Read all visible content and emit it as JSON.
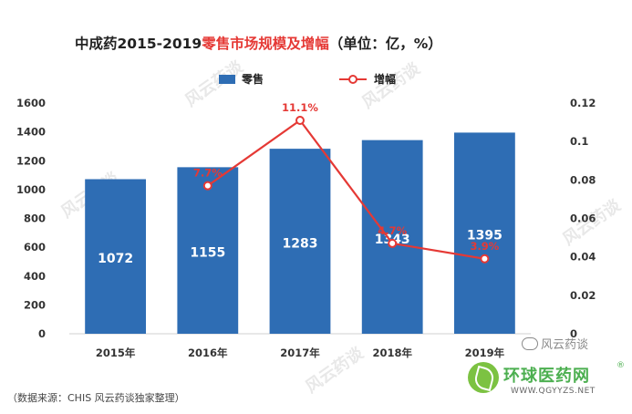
{
  "chart_data": {
    "type": "bar+line",
    "title_prefix": "中成药2015-2019",
    "title_highlight": "零售市场规模及增幅",
    "title_suffix": "（单位：亿，%）",
    "categories": [
      "2015年",
      "2016年",
      "2017年",
      "2018年",
      "2019年"
    ],
    "series": [
      {
        "name": "零售",
        "type": "bar",
        "axis": "left",
        "color": "#2e6db4",
        "values": [
          1072,
          1155,
          1283,
          1343,
          1395
        ]
      },
      {
        "name": "增幅",
        "type": "line",
        "axis": "right",
        "color": "#e53935",
        "values": [
          null,
          0.077,
          0.111,
          0.047,
          0.039
        ],
        "labels": [
          "",
          "7.7%",
          "11.1%",
          "4.7%",
          "3.9%"
        ]
      }
    ],
    "left_axis": {
      "min": 0,
      "max": 1600,
      "step": 200,
      "ticks": [
        "0",
        "200",
        "400",
        "600",
        "800",
        "1000",
        "1200",
        "1400",
        "1600"
      ]
    },
    "right_axis": {
      "min": 0,
      "max": 0.12,
      "step": 0.02,
      "ticks": [
        "0",
        "0.02",
        "0.04",
        "0.06",
        "0.08",
        "0.1",
        "0.12"
      ]
    },
    "grid": false,
    "legend_position": "top-center"
  },
  "footer": {
    "source": "（数据来源：CHIS    风云药谈独家整理）"
  },
  "branding": {
    "wechat_name": "风云药谈",
    "site_name": "环球医药网",
    "site_reg": "®",
    "site_url": "WWW.QGYYZS.NET"
  },
  "watermark": {
    "text": "风云药谈"
  }
}
